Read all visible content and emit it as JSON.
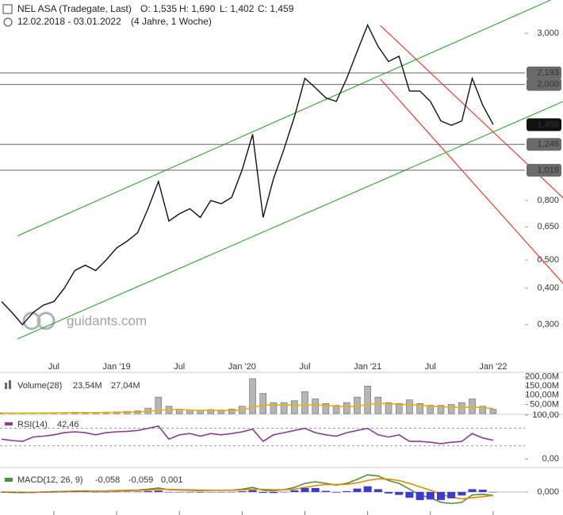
{
  "chart_data": [
    {
      "type": "line",
      "title": "NEL ASA (Tradegate, Last)",
      "ohlc": [
        "O: 1,535",
        "H: 1,690",
        "L: 1,402",
        "C: 1,459"
      ],
      "subtitle": "12.02.2018 - 03.01.2022",
      "period": "(4 Jahre, 1 Woche)",
      "watermark": "guidants.com",
      "log_scale": true,
      "grid": false,
      "categories": [
        null,
        null,
        null,
        null,
        null,
        "Jul",
        null,
        null,
        null,
        null,
        null,
        "Jan '19",
        null,
        null,
        null,
        null,
        null,
        "Jul",
        null,
        null,
        null,
        null,
        null,
        "Jan '20",
        null,
        null,
        null,
        null,
        null,
        "Jul",
        null,
        null,
        null,
        null,
        null,
        "Jan '21",
        null,
        null,
        null,
        null,
        null,
        "Jul",
        null,
        null,
        null,
        null,
        null,
        "Jan '22"
      ],
      "series": [
        {
          "name": "NEL ASA",
          "color": "#111111",
          "values": [
            0.36,
            0.33,
            0.3,
            0.33,
            0.35,
            0.36,
            0.4,
            0.46,
            0.48,
            0.46,
            0.5,
            0.55,
            0.58,
            0.62,
            0.75,
            0.93,
            0.68,
            0.72,
            0.75,
            0.7,
            0.8,
            0.78,
            0.82,
            1.02,
            1.35,
            0.7,
            0.95,
            1.2,
            1.55,
            2.1,
            1.95,
            1.8,
            1.75,
            2.1,
            2.6,
            3.2,
            2.7,
            2.4,
            2.5,
            1.9,
            1.9,
            1.75,
            1.5,
            1.45,
            1.5,
            2.1,
            1.7,
            1.459
          ]
        }
      ],
      "ylim": [
        0.226,
        3.9
      ],
      "yticks": [
        {
          "value": 0.3,
          "label": "0,300"
        },
        {
          "value": 0.4,
          "label": "0,400"
        },
        {
          "value": 0.5,
          "label": "0,500"
        },
        {
          "value": 0.65,
          "label": "0,650"
        },
        {
          "value": 0.8,
          "label": "0,800"
        },
        {
          "value": 3,
          "label": "3,000"
        }
      ],
      "levels": [
        {
          "value": 2.193,
          "label": "2,193"
        },
        {
          "value": 2.0,
          "label": "2,000"
        },
        {
          "value": 1.246,
          "label": "1,246"
        },
        {
          "value": 1.016,
          "label": "1,016"
        }
      ],
      "last_price": {
        "value": 1.456,
        "label": "1,456"
      },
      "trendlines": [
        {
          "color": "#3daa3d",
          "points": [
            {
              "x": 1.52,
              "y": 0.268
            },
            {
              "x": 53.7,
              "y": 1.75
            }
          ]
        },
        {
          "color": "#3daa3d",
          "points": [
            {
              "x": 1.52,
              "y": 0.605
            },
            {
              "x": 52.5,
              "y": 3.9
            }
          ]
        },
        {
          "color": "#e8412c",
          "points": [
            {
              "x": 36.2,
              "y": 3.19
            },
            {
              "x": 53.7,
              "y": 0.816
            }
          ]
        },
        {
          "color": "#e8412c",
          "points": [
            {
              "x": 36.2,
              "y": 2.09
            },
            {
              "x": 53.7,
              "y": 0.415
            }
          ]
        }
      ]
    },
    {
      "type": "bar",
      "title": "Volume(28)",
      "series": [
        {
          "type": "bar",
          "color": "#b5b5b5",
          "current_label": "23,54M",
          "values": [
            4,
            4,
            3,
            3,
            3,
            4,
            5,
            8,
            7,
            6,
            8,
            10,
            12,
            15,
            30,
            90,
            40,
            25,
            20,
            18,
            22,
            20,
            25,
            40,
            190,
            110,
            60,
            60,
            70,
            120,
            80,
            55,
            45,
            60,
            90,
            150,
            90,
            60,
            55,
            75,
            55,
            45,
            45,
            50,
            60,
            80,
            40,
            23.54
          ]
        },
        {
          "type": "line",
          "color": "#e3b40a",
          "current_label": "27,04M",
          "values": [
            3,
            3,
            3,
            3,
            3,
            4,
            4,
            5,
            5,
            5,
            6,
            7,
            8,
            9,
            12,
            18,
            22,
            22,
            20,
            18,
            18,
            17,
            17,
            19,
            35,
            45,
            48,
            48,
            45,
            45,
            47,
            45,
            40,
            38,
            40,
            50,
            55,
            55,
            50,
            48,
            45,
            40,
            38,
            35,
            35,
            35,
            33,
            27.04
          ]
        }
      ],
      "ylim": [
        0,
        220
      ],
      "yticks": [
        {
          "value": 50,
          "label": "50,00M"
        },
        {
          "value": 100,
          "label": "100,00M"
        },
        {
          "value": 150,
          "label": "150,00M"
        },
        {
          "value": 200,
          "label": "200,00M"
        }
      ]
    },
    {
      "type": "line",
      "title": "RSI(14)",
      "series": [
        {
          "type": "line",
          "color": "#8e3a8e",
          "current_label": "42,46",
          "values": [
            45,
            42,
            40,
            50,
            52,
            55,
            60,
            62,
            60,
            55,
            60,
            62,
            63,
            65,
            70,
            75,
            45,
            55,
            58,
            52,
            58,
            55,
            58,
            62,
            68,
            40,
            55,
            60,
            65,
            70,
            60,
            55,
            52,
            60,
            65,
            70,
            55,
            50,
            55,
            40,
            40,
            38,
            35,
            38,
            40,
            58,
            48,
            42.46
          ]
        }
      ],
      "ylim": [
        -16,
        100
      ],
      "levels": [
        70,
        30
      ],
      "yticks": [
        {
          "value": 100,
          "label": "100,00"
        },
        {
          "value": 0,
          "label": "0,00"
        }
      ]
    },
    {
      "type": "bar",
      "title": "MACD(12, 26, 9)",
      "series": [
        {
          "type": "line",
          "color": "#4f8f3a",
          "current_label": "-0,058",
          "values": [
            0,
            -0.005,
            -0.01,
            -0.005,
            0,
            0.005,
            0.01,
            0.015,
            0.02,
            0.015,
            0.018,
            0.025,
            0.03,
            0.035,
            0.05,
            0.07,
            0.04,
            0.035,
            0.03,
            0.025,
            0.03,
            0.03,
            0.035,
            0.05,
            0.08,
            0.03,
            0.02,
            0.04,
            0.08,
            0.15,
            0.18,
            0.15,
            0.12,
            0.15,
            0.22,
            0.3,
            0.28,
            0.2,
            0.15,
            0.05,
            -0.05,
            -0.1,
            -0.18,
            -0.2,
            -0.18,
            -0.05,
            -0.04,
            -0.058
          ]
        },
        {
          "type": "line",
          "color": "#e08a00",
          "current_label": "-0,059",
          "values": [
            0,
            0,
            -0.003,
            -0.005,
            -0.003,
            0,
            0.004,
            0.008,
            0.012,
            0.014,
            0.016,
            0.019,
            0.023,
            0.027,
            0.033,
            0.045,
            0.045,
            0.042,
            0.038,
            0.034,
            0.032,
            0.031,
            0.032,
            0.036,
            0.048,
            0.045,
            0.038,
            0.038,
            0.05,
            0.08,
            0.11,
            0.13,
            0.13,
            0.135,
            0.16,
            0.2,
            0.23,
            0.225,
            0.2,
            0.15,
            0.09,
            0.03,
            -0.04,
            -0.09,
            -0.12,
            -0.1,
            -0.08,
            -0.059
          ]
        },
        {
          "type": "bar",
          "color": "#3b3bd0",
          "current_label": "0,001",
          "values": [
            0,
            -0.005,
            -0.007,
            0,
            0.003,
            0.005,
            0.006,
            0.007,
            0.008,
            0.001,
            0.002,
            0.006,
            0.007,
            0.008,
            0.017,
            0.025,
            -0.005,
            -0.007,
            -0.008,
            -0.009,
            -0.002,
            -0.001,
            0.003,
            0.014,
            0.032,
            -0.015,
            -0.018,
            0.002,
            0.03,
            0.07,
            0.07,
            0.02,
            -0.01,
            0.015,
            0.06,
            0.1,
            0.05,
            -0.025,
            -0.05,
            -0.1,
            -0.14,
            -0.13,
            -0.14,
            -0.11,
            -0.06,
            0.05,
            0.04,
            0.001
          ]
        }
      ],
      "ylim": [
        -0.4,
        0.4
      ],
      "yticks": [
        {
          "value": 0,
          "label": "0,000"
        }
      ]
    }
  ]
}
